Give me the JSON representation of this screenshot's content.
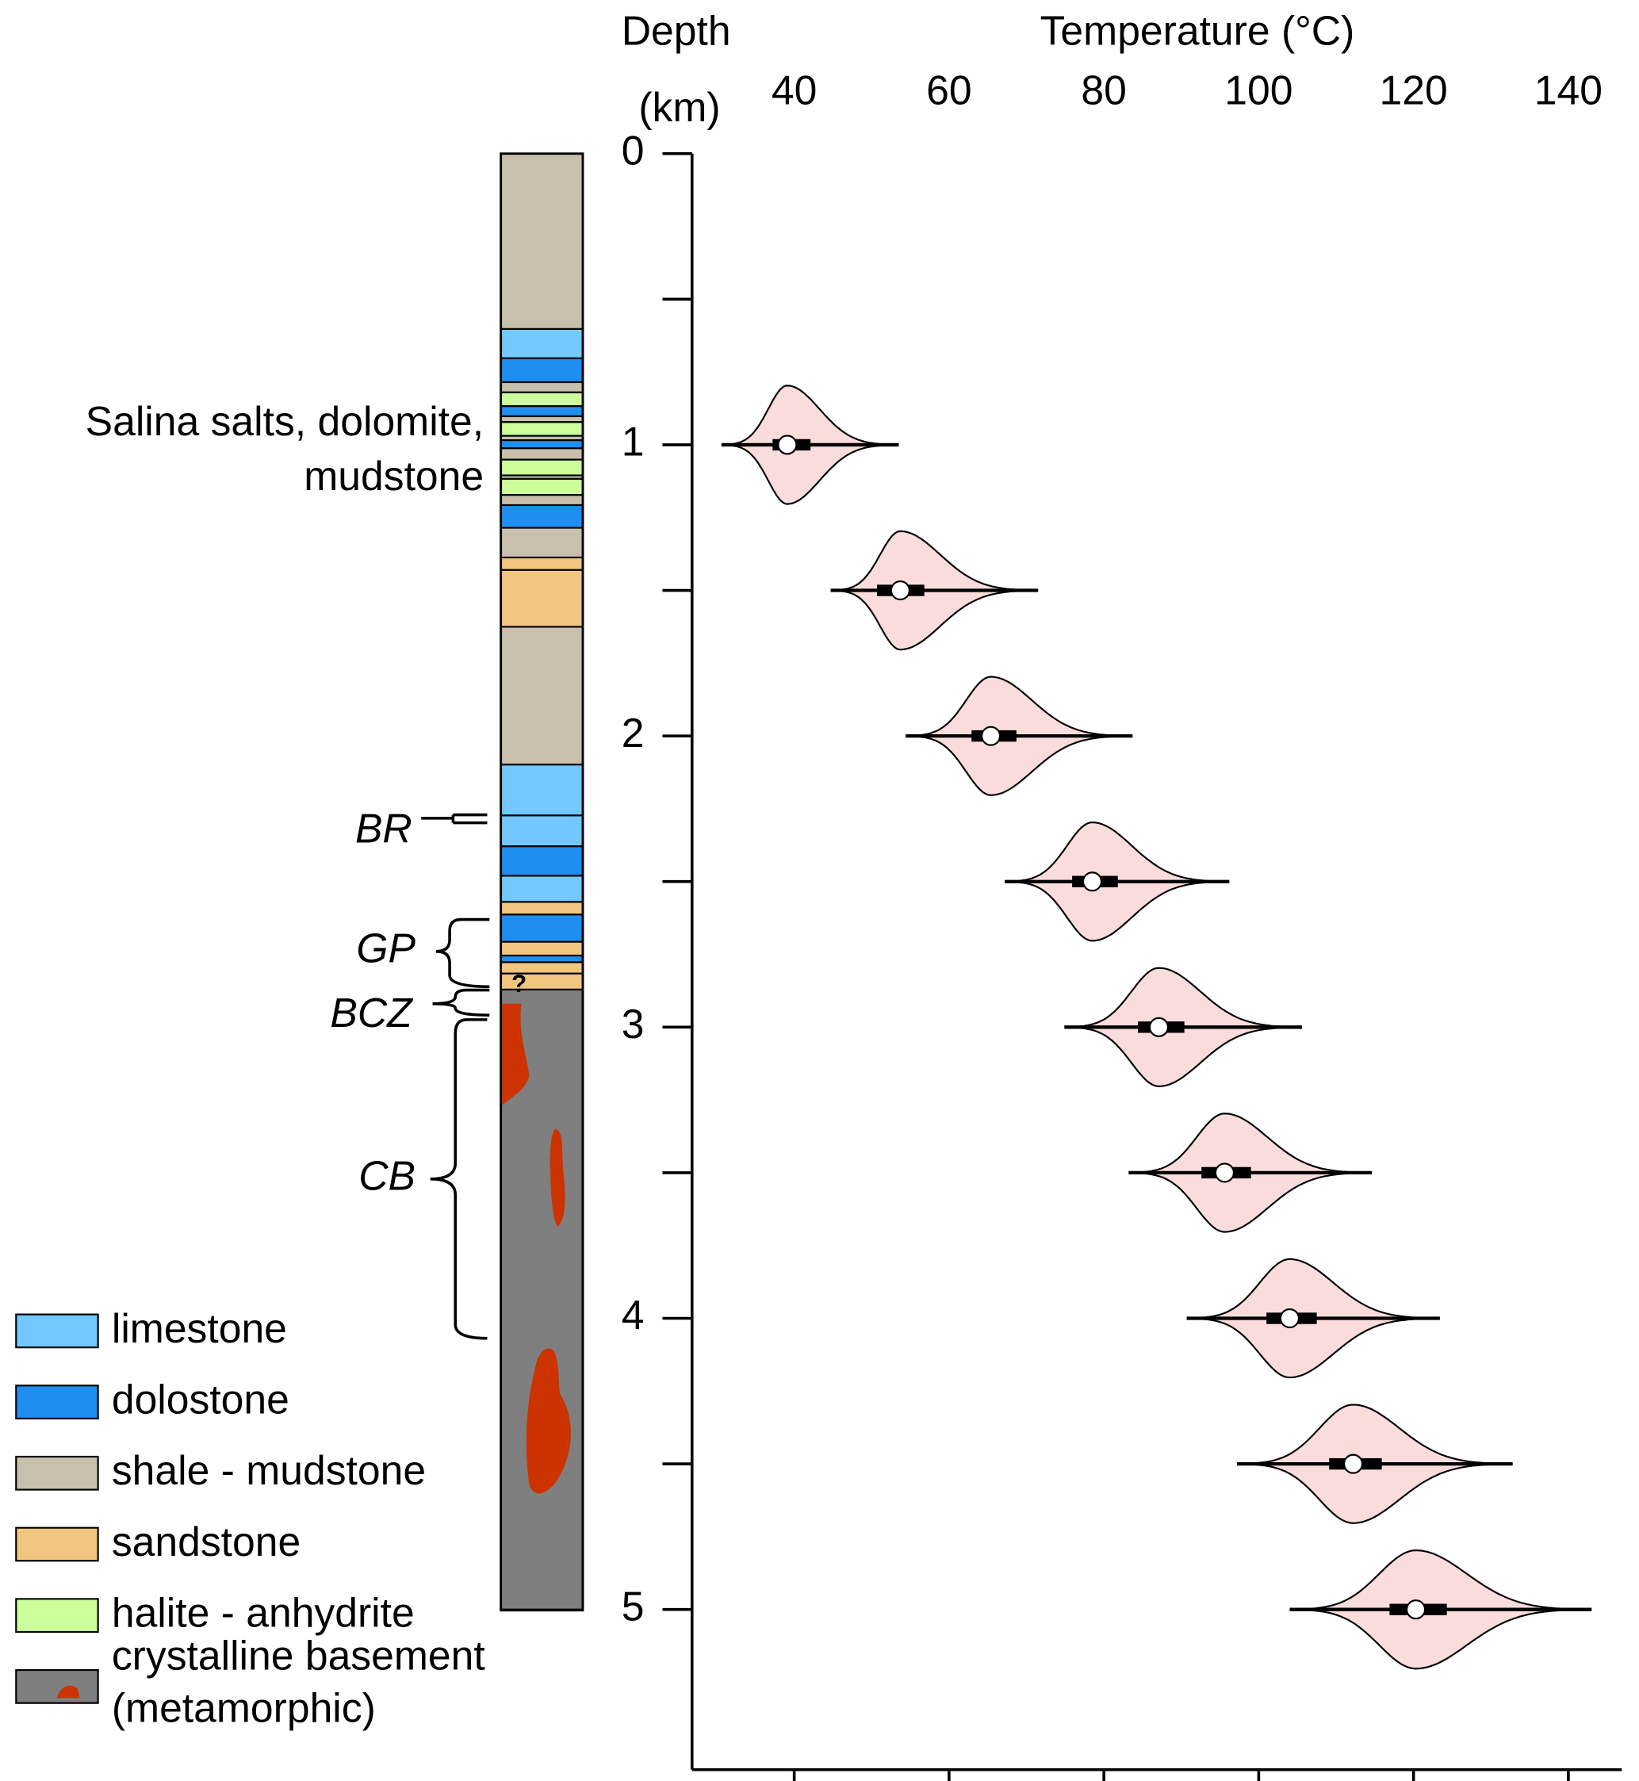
{
  "chart_data": {
    "type": "violin",
    "xlabel": "Temperature (°C)",
    "ylabel": [
      "Depth",
      "(km)"
    ],
    "xlim": [
      26.8,
      146.9
    ],
    "xticks": [
      40,
      60,
      80,
      100,
      120,
      140
    ],
    "ylim": [
      0,
      5.55
    ],
    "yticks": [
      0,
      1,
      2,
      3,
      4,
      5
    ],
    "yminor_ticks": [
      0.5,
      1.5,
      2.5,
      3.5,
      4.5
    ],
    "color": "#fbdcdc",
    "y": [
      1,
      1.5,
      2,
      2.5,
      3,
      3.5,
      4,
      4.5,
      5
    ],
    "min": [
      30.6,
      44.7,
      54.4,
      67.2,
      74.9,
      83.2,
      90.7,
      97.2,
      104
    ],
    "q1": [
      37.2,
      50.7,
      62.9,
      75.9,
      84.4,
      92.6,
      101,
      109.1,
      116.9
    ],
    "median": [
      39.1,
      53.7,
      65.4,
      78.5,
      87.1,
      95.6,
      104,
      112.2,
      120.3
    ],
    "q3": [
      42.1,
      56.8,
      68.7,
      81.8,
      90.4,
      99,
      107.5,
      115.9,
      124.3
    ],
    "max": [
      53.5,
      71.5,
      83.7,
      96.2,
      105.6,
      114.6,
      123.4,
      132.8,
      143
    ],
    "column": {
      "legend": [
        {
          "label": [
            "limestone"
          ],
          "color": "#72c8ff",
          "layers": [
            [
              0.602,
              0.703
            ],
            [
              2.098,
              2.273
            ],
            [
              2.273,
              2.379
            ],
            [
              2.48,
              2.57
            ]
          ]
        },
        {
          "label": [
            "dolostone"
          ],
          "color": "#1e8ff0",
          "layers": [
            [
              0.703,
              0.785
            ],
            [
              0.867,
              0.902
            ],
            [
              0.984,
              1.012
            ],
            [
              1.207,
              1.285
            ],
            [
              2.379,
              2.48
            ],
            [
              2.613,
              2.707
            ],
            [
              2.754,
              2.777
            ]
          ]
        },
        {
          "label": [
            "shale - mudstone"
          ],
          "color": "#c8c0ac",
          "layers": [
            [
              0,
              0.602
            ],
            [
              0.785,
              0.82
            ],
            [
              0.902,
              0.922
            ],
            [
              0.969,
              0.984
            ],
            [
              1.012,
              1.051
            ],
            [
              1.105,
              1.117
            ],
            [
              1.172,
              1.207
            ],
            [
              1.285,
              1.387
            ],
            [
              1.625,
              2.098
            ]
          ]
        },
        {
          "label": [
            "sandstone"
          ],
          "color": "#f2c67f",
          "layers": [
            [
              1.387,
              1.43
            ],
            [
              1.43,
              1.625
            ],
            [
              2.57,
              2.613
            ],
            [
              2.707,
              2.754
            ],
            [
              2.777,
              2.816
            ],
            [
              2.816,
              2.871
            ]
          ]
        },
        {
          "label": [
            "halite - anhydrite"
          ],
          "color": "#ccff99",
          "layers": [
            [
              0.82,
              0.867
            ],
            [
              0.922,
              0.969
            ],
            [
              1.051,
              1.105
            ],
            [
              1.117,
              1.172
            ]
          ]
        },
        {
          "label": [
            "crystalline basement",
            "(metamorphic)"
          ],
          "color": "#7f7f7f",
          "layers": [
            [
              2.871,
              5
            ]
          ]
        }
      ],
      "annotations": {
        "salina": [
          "Salina salts, dolomite,",
          "mudstone"
        ],
        "br": "BR",
        "gp": "GP",
        "bcz": "BCZ",
        "cb": "CB",
        "query": "?"
      }
    }
  }
}
